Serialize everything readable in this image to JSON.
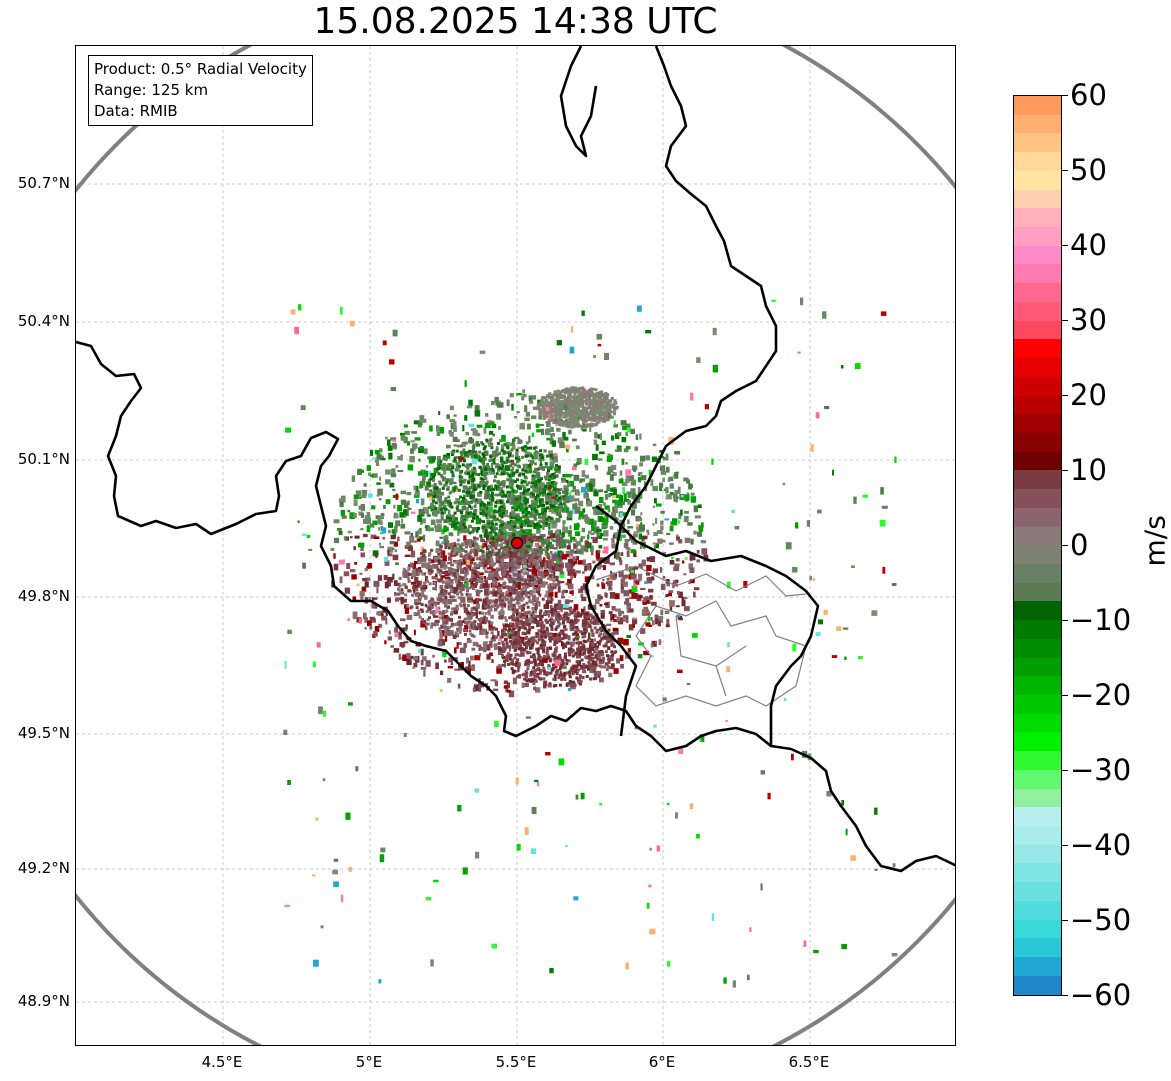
{
  "title": "15.08.2025 14:38 UTC",
  "info": {
    "product": "Product: 0.5° Radial Velocity",
    "range": "Range: 125 km",
    "data": "Data: RMIB"
  },
  "lat_ticks": [
    "50.7°N",
    "50.4°N",
    "50.1°N",
    "49.8°N",
    "49.5°N",
    "49.2°N",
    "48.9°N"
  ],
  "lon_ticks": [
    "4.5°E",
    "5°E",
    "5.5°E",
    "6°E",
    "6.5°E"
  ],
  "colorbar": {
    "ticks": [
      "60",
      "50",
      "40",
      "30",
      "20",
      "10",
      "0",
      "−10",
      "−20",
      "−30",
      "−40",
      "−50",
      "−60"
    ],
    "unit": "m/s",
    "colors_top_to_bottom": [
      "#ff9a5a",
      "#ffb070",
      "#ffc482",
      "#ffd89a",
      "#ffe3a0",
      "#ffd0b0",
      "#ffb0b8",
      "#ff9fc2",
      "#ff8ac8",
      "#ff7ab0",
      "#ff6890",
      "#ff5878",
      "#ff4860",
      "#ff0000",
      "#e80000",
      "#d00000",
      "#b80000",
      "#a00000",
      "#880000",
      "#700000",
      "#7a3b40",
      "#85505a",
      "#8a6570",
      "#8a7a78",
      "#7f7f72",
      "#6a8064",
      "#5a7a56",
      "#006400",
      "#007a00",
      "#008c00",
      "#009e00",
      "#00b400",
      "#00c800",
      "#00dc00",
      "#00f000",
      "#30f830",
      "#60f870",
      "#90f0a0",
      "#b8f0f0",
      "#a8ecec",
      "#98e8e8",
      "#80e4e4",
      "#68e0e0",
      "#50dcdc",
      "#38d8d8",
      "#28c8d8",
      "#20a8d0",
      "#1e88c8"
    ]
  },
  "site": {
    "lat": 49.915,
    "lon": 5.505,
    "color": "#dd0000"
  },
  "map_extent": {
    "lon_min": 4.0,
    "lon_max": 7.0,
    "lat_min": 48.8,
    "lat_max": 50.99
  },
  "colors": {
    "range_ring": "#808080",
    "border": "#000000",
    "grid": "#bbbbbb",
    "region_border": "#808080"
  }
}
